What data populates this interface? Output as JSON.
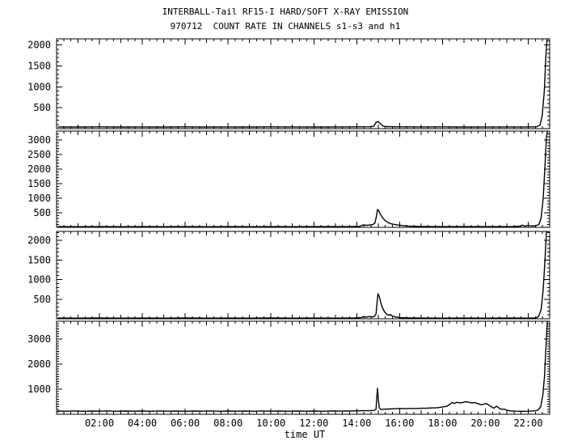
{
  "title": "INTERBALL-Tail RF15-I HARD/SOFT X-RAY EMISSION",
  "subtitle": "970712  COUNT RATE IN CHANNELS s1-s3 and h1",
  "chart_data": {
    "type": "line",
    "line_color": "#000000",
    "background_color": "#ffffff",
    "xlabel": "time UT",
    "x_range_hours": [
      0,
      23
    ],
    "x_minor_step_minutes": 20,
    "grid": false,
    "x_ticks": [
      {
        "hour": 2,
        "label": "02:00"
      },
      {
        "hour": 4,
        "label": "04:00"
      },
      {
        "hour": 6,
        "label": "06:00"
      },
      {
        "hour": 8,
        "label": "08:00"
      },
      {
        "hour": 10,
        "label": "10:00"
      },
      {
        "hour": 12,
        "label": "12:00"
      },
      {
        "hour": 14,
        "label": "14:00"
      },
      {
        "hour": 16,
        "label": "16:00"
      },
      {
        "hour": 18,
        "label": "18:00"
      },
      {
        "hour": 20,
        "label": "20:00"
      },
      {
        "hour": 22,
        "label": "22:00"
      }
    ],
    "panels": [
      {
        "channel": "s1",
        "ylim": [
          0,
          2150
        ],
        "ylabel_ticks": [
          500,
          1000,
          1500,
          2000
        ],
        "y_minor_step": 100,
        "points": [
          [
            0.05,
            40
          ],
          [
            1,
            38
          ],
          [
            2,
            42
          ],
          [
            3,
            38
          ],
          [
            4,
            40
          ],
          [
            5,
            38
          ],
          [
            6,
            42
          ],
          [
            7,
            38
          ],
          [
            8,
            40
          ],
          [
            9,
            38
          ],
          [
            10,
            42
          ],
          [
            11,
            40
          ],
          [
            12,
            38
          ],
          [
            13,
            40
          ],
          [
            14,
            42
          ],
          [
            14.6,
            45
          ],
          [
            14.8,
            60
          ],
          [
            14.9,
            150
          ],
          [
            15.0,
            170
          ],
          [
            15.1,
            120
          ],
          [
            15.2,
            70
          ],
          [
            15.35,
            48
          ],
          [
            16,
            42
          ],
          [
            17,
            40
          ],
          [
            18,
            42
          ],
          [
            19,
            38
          ],
          [
            20,
            40
          ],
          [
            21,
            40
          ],
          [
            22,
            40
          ],
          [
            22.4,
            45
          ],
          [
            22.55,
            90
          ],
          [
            22.65,
            300
          ],
          [
            22.75,
            900
          ],
          [
            22.82,
            1700
          ],
          [
            22.88,
            2150
          ],
          [
            22.95,
            2150
          ]
        ]
      },
      {
        "channel": "s2",
        "ylim": [
          0,
          3300
        ],
        "ylabel_ticks": [
          500,
          1000,
          1500,
          2000,
          2500,
          3000
        ],
        "y_minor_step": 100,
        "points": [
          [
            0.05,
            25
          ],
          [
            1,
            22
          ],
          [
            2,
            26
          ],
          [
            3,
            22
          ],
          [
            4,
            25
          ],
          [
            5,
            22
          ],
          [
            6,
            26
          ],
          [
            7,
            23
          ],
          [
            8,
            25
          ],
          [
            9,
            22
          ],
          [
            10,
            26
          ],
          [
            11,
            23
          ],
          [
            12,
            25
          ],
          [
            13,
            24
          ],
          [
            13.8,
            28
          ],
          [
            14.15,
            35
          ],
          [
            14.3,
            85
          ],
          [
            14.45,
            70
          ],
          [
            14.6,
            80
          ],
          [
            14.75,
            95
          ],
          [
            14.85,
            150
          ],
          [
            14.92,
            380
          ],
          [
            14.97,
            610
          ],
          [
            15.02,
            580
          ],
          [
            15.08,
            480
          ],
          [
            15.15,
            390
          ],
          [
            15.25,
            290
          ],
          [
            15.35,
            215
          ],
          [
            15.5,
            150
          ],
          [
            15.65,
            115
          ],
          [
            15.85,
            90
          ],
          [
            16.1,
            65
          ],
          [
            16.4,
            45
          ],
          [
            16.8,
            32
          ],
          [
            17.5,
            26
          ],
          [
            18.5,
            24
          ],
          [
            19.5,
            26
          ],
          [
            20.5,
            24
          ],
          [
            21.3,
            26
          ],
          [
            21.6,
            40
          ],
          [
            21.72,
            75
          ],
          [
            21.85,
            40
          ],
          [
            22.0,
            70
          ],
          [
            22.15,
            45
          ],
          [
            22.35,
            55
          ],
          [
            22.5,
            100
          ],
          [
            22.6,
            320
          ],
          [
            22.7,
            1000
          ],
          [
            22.78,
            2100
          ],
          [
            22.85,
            3100
          ],
          [
            22.9,
            3300
          ],
          [
            22.95,
            3300
          ]
        ]
      },
      {
        "channel": "s3",
        "ylim": [
          0,
          2230
        ],
        "ylabel_ticks": [
          500,
          1000,
          1500,
          2000
        ],
        "y_minor_step": 100,
        "points": [
          [
            0.05,
            18
          ],
          [
            1,
            16
          ],
          [
            2,
            20
          ],
          [
            3,
            16
          ],
          [
            4,
            18
          ],
          [
            5,
            16
          ],
          [
            6,
            20
          ],
          [
            7,
            17
          ],
          [
            8,
            18
          ],
          [
            9,
            16
          ],
          [
            10,
            20
          ],
          [
            11,
            17
          ],
          [
            12,
            18
          ],
          [
            13,
            17
          ],
          [
            13.9,
            20
          ],
          [
            14.2,
            28
          ],
          [
            14.32,
            55
          ],
          [
            14.45,
            40
          ],
          [
            14.6,
            58
          ],
          [
            14.72,
            48
          ],
          [
            14.82,
            60
          ],
          [
            14.9,
            120
          ],
          [
            14.95,
            420
          ],
          [
            14.99,
            640
          ],
          [
            15.05,
            570
          ],
          [
            15.12,
            420
          ],
          [
            15.2,
            280
          ],
          [
            15.3,
            175
          ],
          [
            15.42,
            105
          ],
          [
            15.5,
            88
          ],
          [
            15.56,
            112
          ],
          [
            15.65,
            70
          ],
          [
            15.8,
            48
          ],
          [
            16.0,
            32
          ],
          [
            16.3,
            22
          ],
          [
            17,
            18
          ],
          [
            18,
            17
          ],
          [
            19,
            18
          ],
          [
            20,
            17
          ],
          [
            21,
            18
          ],
          [
            22,
            17
          ],
          [
            22.35,
            20
          ],
          [
            22.48,
            55
          ],
          [
            22.6,
            230
          ],
          [
            22.7,
            750
          ],
          [
            22.78,
            1500
          ],
          [
            22.85,
            2230
          ],
          [
            22.95,
            2230
          ]
        ]
      },
      {
        "channel": "h1",
        "ylim": [
          0,
          3700
        ],
        "ylabel_ticks": [
          1000,
          2000,
          3000
        ],
        "y_minor_step": 100,
        "points": [
          [
            0.05,
            130
          ],
          [
            0.4,
            118
          ],
          [
            0.8,
            132
          ],
          [
            1.2,
            120
          ],
          [
            1.6,
            130
          ],
          [
            2,
            122
          ],
          [
            2.4,
            132
          ],
          [
            2.8,
            120
          ],
          [
            3.2,
            130
          ],
          [
            3.6,
            122
          ],
          [
            4,
            130
          ],
          [
            4.4,
            120
          ],
          [
            4.8,
            132
          ],
          [
            5.2,
            122
          ],
          [
            5.6,
            130
          ],
          [
            6,
            120
          ],
          [
            6.4,
            130
          ],
          [
            6.8,
            122
          ],
          [
            7.2,
            132
          ],
          [
            7.6,
            120
          ],
          [
            8,
            130
          ],
          [
            8.4,
            122
          ],
          [
            8.8,
            130
          ],
          [
            9.2,
            120
          ],
          [
            9.6,
            132
          ],
          [
            10,
            122
          ],
          [
            10.4,
            130
          ],
          [
            10.8,
            120
          ],
          [
            11.2,
            130
          ],
          [
            11.6,
            122
          ],
          [
            12,
            130
          ],
          [
            12.4,
            120
          ],
          [
            12.8,
            132
          ],
          [
            13.2,
            124
          ],
          [
            13.6,
            130
          ],
          [
            14,
            135
          ],
          [
            14.3,
            140
          ],
          [
            14.6,
            142
          ],
          [
            14.8,
            150
          ],
          [
            14.9,
            200
          ],
          [
            14.94,
            700
          ],
          [
            14.97,
            1030
          ],
          [
            15.01,
            600
          ],
          [
            15.05,
            260
          ],
          [
            15.12,
            190
          ],
          [
            15.25,
            200
          ],
          [
            15.5,
            210
          ],
          [
            15.75,
            220
          ],
          [
            16,
            228
          ],
          [
            16.25,
            222
          ],
          [
            16.5,
            232
          ],
          [
            16.75,
            228
          ],
          [
            17,
            238
          ],
          [
            17.25,
            240
          ],
          [
            17.5,
            250
          ],
          [
            17.75,
            262
          ],
          [
            18,
            285
          ],
          [
            18.2,
            320
          ],
          [
            18.35,
            400
          ],
          [
            18.45,
            465
          ],
          [
            18.55,
            430
          ],
          [
            18.68,
            475
          ],
          [
            18.8,
            455
          ],
          [
            18.95,
            465
          ],
          [
            19.05,
            498
          ],
          [
            19.2,
            488
          ],
          [
            19.35,
            450
          ],
          [
            19.5,
            462
          ],
          [
            19.65,
            425
          ],
          [
            19.8,
            375
          ],
          [
            19.92,
            400
          ],
          [
            20.02,
            432
          ],
          [
            20.12,
            385
          ],
          [
            20.25,
            310
          ],
          [
            20.4,
            240
          ],
          [
            20.52,
            320
          ],
          [
            20.62,
            255
          ],
          [
            20.75,
            195
          ],
          [
            20.88,
            205
          ],
          [
            21.0,
            165
          ],
          [
            21.15,
            135
          ],
          [
            21.4,
            122
          ],
          [
            21.7,
            118
          ],
          [
            22.0,
            122
          ],
          [
            22.3,
            135
          ],
          [
            22.45,
            160
          ],
          [
            22.58,
            300
          ],
          [
            22.68,
            750
          ],
          [
            22.76,
            1500
          ],
          [
            22.83,
            2700
          ],
          [
            22.89,
            3700
          ],
          [
            22.95,
            3700
          ]
        ]
      }
    ]
  }
}
